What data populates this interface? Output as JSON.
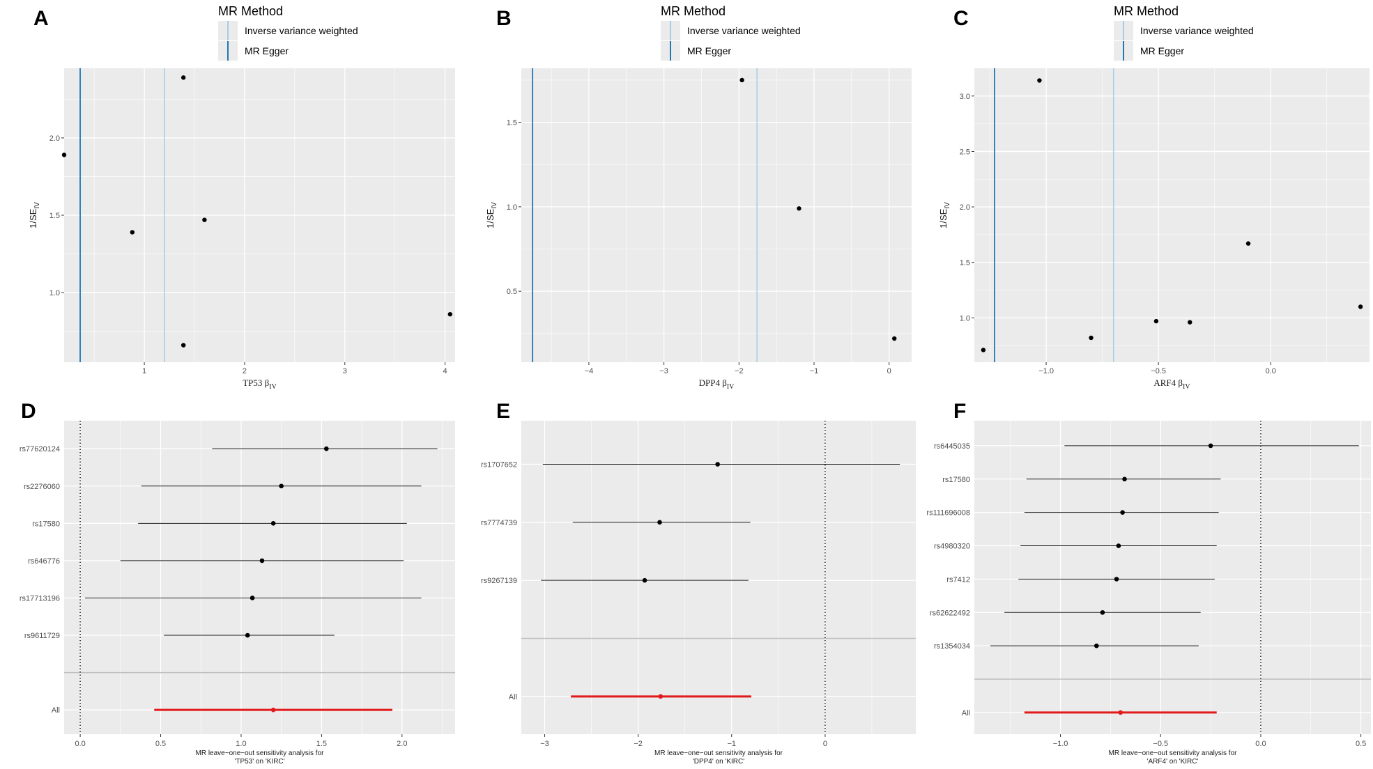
{
  "figure": {
    "panels": [
      "A",
      "B",
      "C",
      "D",
      "E",
      "F"
    ],
    "legend": {
      "title": "MR Method",
      "items": [
        {
          "label": "Inverse variance weighted",
          "color": "#a6cee3"
        },
        {
          "label": "MR Egger",
          "color": "#1f78b4"
        }
      ]
    },
    "colors": {
      "panel_bg": "#ebebeb",
      "grid": "#ffffff",
      "point": "#000000",
      "summary": "#e31a1c",
      "ivw": "#a6cee3",
      "egger": "#1f78b4"
    }
  },
  "chart_data": [
    {
      "panel": "A",
      "type": "scatter",
      "subtype": "funnel",
      "xlabel_prefix": "TP53 ",
      "ylabel": "1/SE",
      "label_subscript": "IV",
      "xlim": [
        0.2,
        4.1
      ],
      "ylim": [
        0.55,
        2.45
      ],
      "x_ticks": [
        1,
        2,
        3,
        4
      ],
      "y_ticks": [
        1.0,
        1.5,
        2.0
      ],
      "y_tick_labels": [
        "1.0",
        "1.5",
        "2.0"
      ],
      "points": [
        {
          "x": 0.2,
          "y": 1.89
        },
        {
          "x": 0.88,
          "y": 1.39
        },
        {
          "x": 1.39,
          "y": 2.39
        },
        {
          "x": 1.6,
          "y": 1.47
        },
        {
          "x": 1.39,
          "y": 0.66
        },
        {
          "x": 4.05,
          "y": 0.86
        }
      ],
      "ivw_estimate": 1.2,
      "egger_estimate": 0.36
    },
    {
      "panel": "B",
      "type": "scatter",
      "subtype": "funnel",
      "xlabel_prefix": "DPP4 ",
      "ylabel": "1/SE",
      "label_subscript": "IV",
      "xlim": [
        -4.9,
        0.3
      ],
      "ylim": [
        0.08,
        1.82
      ],
      "x_ticks": [
        -4,
        -3,
        -2,
        -1,
        0
      ],
      "x_tick_labels": [
        "−4",
        "−3",
        "−2",
        "−1",
        "0"
      ],
      "y_ticks": [
        0.5,
        1.0,
        1.5
      ],
      "y_tick_labels": [
        "0.5",
        "1.0",
        "1.5"
      ],
      "points": [
        {
          "x": -1.96,
          "y": 1.75
        },
        {
          "x": -1.2,
          "y": 0.99
        },
        {
          "x": 0.07,
          "y": 0.22
        }
      ],
      "ivw_estimate": -1.76,
      "egger_estimate": -4.75
    },
    {
      "panel": "C",
      "type": "scatter",
      "subtype": "funnel",
      "xlabel_prefix": "ARF4 ",
      "ylabel": "1/SE",
      "label_subscript": "IV",
      "xlim": [
        -1.32,
        0.44
      ],
      "ylim": [
        0.6,
        3.25
      ],
      "x_ticks": [
        -1.0,
        -0.5,
        0.0
      ],
      "x_tick_labels": [
        "−1.0",
        "−0.5",
        "0.0"
      ],
      "y_ticks": [
        1.0,
        1.5,
        2.0,
        2.5,
        3.0
      ],
      "y_tick_labels": [
        "1.0",
        "1.5",
        "2.0",
        "2.5",
        "3.0"
      ],
      "points": [
        {
          "x": -1.28,
          "y": 0.71
        },
        {
          "x": -1.03,
          "y": 3.14
        },
        {
          "x": -0.8,
          "y": 0.82
        },
        {
          "x": -0.51,
          "y": 0.97
        },
        {
          "x": -0.36,
          "y": 0.96
        },
        {
          "x": -0.1,
          "y": 1.67
        },
        {
          "x": 0.4,
          "y": 1.1
        }
      ],
      "ivw_estimate": -0.7,
      "egger_estimate": -1.23
    },
    {
      "panel": "D",
      "type": "forest",
      "caption_line1": "MR leave−one−out sensitivity analysis for",
      "caption_line2": "'TP53' on 'KIRC'",
      "xlim": [
        -0.1,
        2.33
      ],
      "x_ticks": [
        0.0,
        0.5,
        1.0,
        1.5,
        2.0
      ],
      "x_tick_labels": [
        "0.0",
        "0.5",
        "1.0",
        "1.5",
        "2.0"
      ],
      "snps": [
        "rs77620124",
        "rs2276060",
        "rs17580",
        "rs646776",
        "rs17713196",
        "rs9611729"
      ],
      "estimates": [
        1.53,
        1.25,
        1.2,
        1.13,
        1.07,
        1.04
      ],
      "lower": [
        0.82,
        0.38,
        0.36,
        0.25,
        0.03,
        0.52
      ],
      "upper": [
        2.22,
        2.12,
        2.03,
        2.01,
        2.12,
        1.58
      ],
      "all_label": "All",
      "all_estimate": 1.2,
      "all_lower": 0.46,
      "all_upper": 1.94
    },
    {
      "panel": "E",
      "type": "forest",
      "caption_line1": "MR leave−one−out sensitivity analysis for",
      "caption_line2": "'DPP4' on 'KIRC'",
      "xlim": [
        -3.25,
        0.97
      ],
      "x_ticks": [
        -3,
        -2,
        -1,
        0
      ],
      "x_tick_labels": [
        "−3",
        "−2",
        "−1",
        "0"
      ],
      "snps": [
        "rs1707652",
        "rs7774739",
        "rs9267139"
      ],
      "estimates": [
        -1.15,
        -1.77,
        -1.93
      ],
      "lower": [
        -3.02,
        -2.7,
        -3.04
      ],
      "upper": [
        0.8,
        -0.8,
        -0.82
      ],
      "all_label": "All",
      "all_estimate": -1.76,
      "all_lower": -2.72,
      "all_upper": -0.79
    },
    {
      "panel": "F",
      "type": "forest",
      "caption_line1": "MR leave−one−out sensitivity analysis for",
      "caption_line2": "'ARF4' on 'KIRC'",
      "xlim": [
        -1.43,
        0.55
      ],
      "x_ticks": [
        -1.0,
        -0.5,
        0.0,
        0.5
      ],
      "x_tick_labels": [
        "−1.0",
        "−0.5",
        "0.0",
        "0.5"
      ],
      "snps": [
        "rs6445035",
        "rs17580",
        "rs111696008",
        "rs4980320",
        "rs7412",
        "rs62622492",
        "rs1354034"
      ],
      "estimates": [
        -0.25,
        -0.68,
        -0.69,
        -0.71,
        -0.72,
        -0.79,
        -0.82
      ],
      "lower": [
        -0.98,
        -1.17,
        -1.18,
        -1.2,
        -1.21,
        -1.28,
        -1.35
      ],
      "upper": [
        0.49,
        -0.2,
        -0.21,
        -0.22,
        -0.23,
        -0.3,
        -0.31
      ],
      "all_label": "All",
      "all_estimate": -0.7,
      "all_lower": -1.18,
      "all_upper": -0.22
    }
  ]
}
